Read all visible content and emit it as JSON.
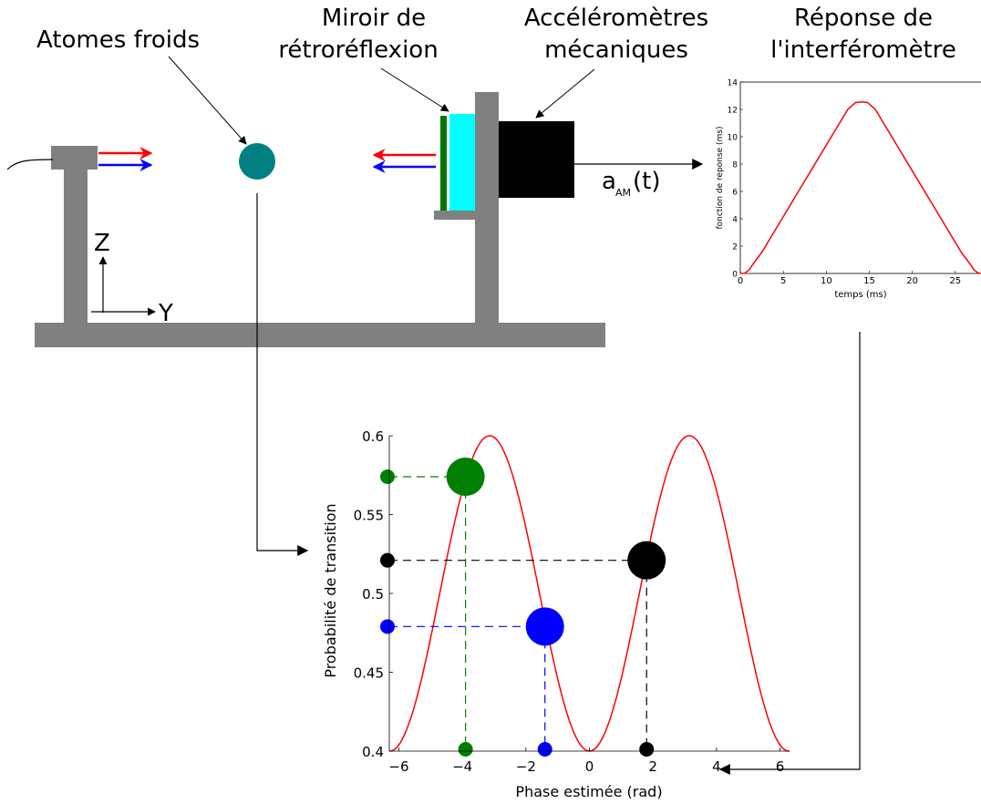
{
  "labels": {
    "atoms": "Atomes froids",
    "mirror_line1": "Miroir de",
    "mirror_line2": "rétroréflexion",
    "accel_line1": "Accéléromètres",
    "accel_line2": "mécaniques",
    "response_line1": "Réponse de",
    "response_line2": "l'interféromètre",
    "accel_signal_main": "a",
    "accel_signal_sub": "AM",
    "accel_signal_suffix": "(t)",
    "axis_z": "Z",
    "axis_y": "Y"
  },
  "colors": {
    "frame_gray": "#808080",
    "atom_teal": "#008080",
    "mirror_cyan": "#00ffff",
    "mirror_green": "#007700",
    "accelerometer_black": "#000000",
    "beam_red": "#ff0000",
    "beam_blue": "#0000ff",
    "curve_red": "#ff0000",
    "marker_green": "#008000",
    "marker_blue": "#0000ff",
    "marker_black": "#000000"
  },
  "response_chart": {
    "type": "line",
    "xlabel": "temps (ms)",
    "ylabel": "fonction de reponse (ms)",
    "x_ticks": [
      "0",
      "5",
      "10",
      "15",
      "20",
      "25"
    ],
    "y_ticks": [
      "0",
      "2",
      "4",
      "6",
      "8",
      "10",
      "12",
      "14"
    ],
    "xlim": [
      0,
      28.2
    ],
    "ylim": [
      0,
      14
    ],
    "points": [
      [
        0,
        0
      ],
      [
        0.5,
        0.02
      ],
      [
        1,
        0.25
      ],
      [
        1.5,
        0.7
      ],
      [
        2.5,
        1.55
      ],
      [
        12.5,
        12.0
      ],
      [
        13.4,
        12.5
      ],
      [
        14.1,
        12.55
      ],
      [
        14.8,
        12.5
      ],
      [
        15.7,
        12.0
      ],
      [
        25.7,
        1.55
      ],
      [
        26.7,
        0.7
      ],
      [
        27.2,
        0.25
      ],
      [
        27.7,
        0.02
      ],
      [
        28.2,
        0
      ]
    ]
  },
  "transition_chart": {
    "type": "line",
    "xlabel": "Phase estimée (rad)",
    "ylabel": "Probabilité de transition",
    "x_ticks": [
      "−6",
      "−4",
      "−2",
      "0",
      "2",
      "4",
      "6"
    ],
    "y_ticks": [
      "0.4",
      "0.45",
      "0.5",
      "0.55",
      "0.6"
    ],
    "xlim": [
      -6.3,
      6.3
    ],
    "ylim": [
      0.4,
      0.6
    ],
    "curve": "P = 0.5 - 0.1 cos(phi)",
    "markers": [
      {
        "name": "green",
        "phase": -3.9,
        "probability": 0.574
      },
      {
        "name": "black",
        "phase": 1.8,
        "probability": 0.521
      },
      {
        "name": "blue",
        "phase": -1.4,
        "probability": 0.479
      }
    ]
  }
}
